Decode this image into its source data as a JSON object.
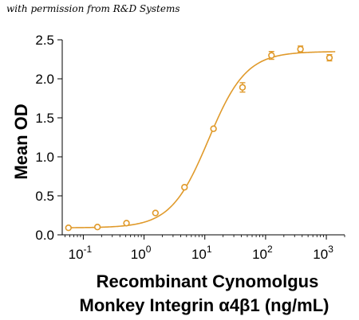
{
  "watermark": "with permission from R&D Systems",
  "chart_data": {
    "type": "scatter",
    "xscale": "log",
    "xlim": [
      0.045,
      2000
    ],
    "ylim": [
      0,
      2.5
    ],
    "yticks": [
      0.0,
      0.5,
      1.0,
      1.5,
      2.0,
      2.5
    ],
    "ytick_labels": [
      "0.0",
      "0.5",
      "1.0",
      "1.5",
      "2.0",
      "2.5"
    ],
    "xticks": [
      {
        "value": 0.1,
        "base": "10",
        "exp": "-1"
      },
      {
        "value": 1,
        "base": "10",
        "exp": "0"
      },
      {
        "value": 10,
        "base": "10",
        "exp": "1"
      },
      {
        "value": 100,
        "base": "10",
        "exp": "2"
      },
      {
        "value": 1000,
        "base": "10",
        "exp": "3"
      }
    ],
    "ylabel": "Mean OD",
    "xlabel_line1": "Recombinant Cynomolgus",
    "xlabel_line2": "Monkey Integrin α4β1 (ng/mL)",
    "color": "#E09A2B",
    "x": [
      0.057,
      0.171,
      0.514,
      1.54,
      4.63,
      13.9,
      41.7,
      125,
      375,
      1125
    ],
    "y": [
      0.09,
      0.1,
      0.15,
      0.28,
      0.61,
      1.36,
      1.89,
      2.3,
      2.38,
      2.27
    ],
    "error": [
      0.0,
      0.0,
      0.0,
      0.0,
      0.0,
      0.0,
      0.06,
      0.05,
      0.04,
      0.04
    ],
    "fit": {
      "bottom": 0.09,
      "top": 2.35,
      "ec50": 11.5,
      "hill": 1.4
    }
  }
}
